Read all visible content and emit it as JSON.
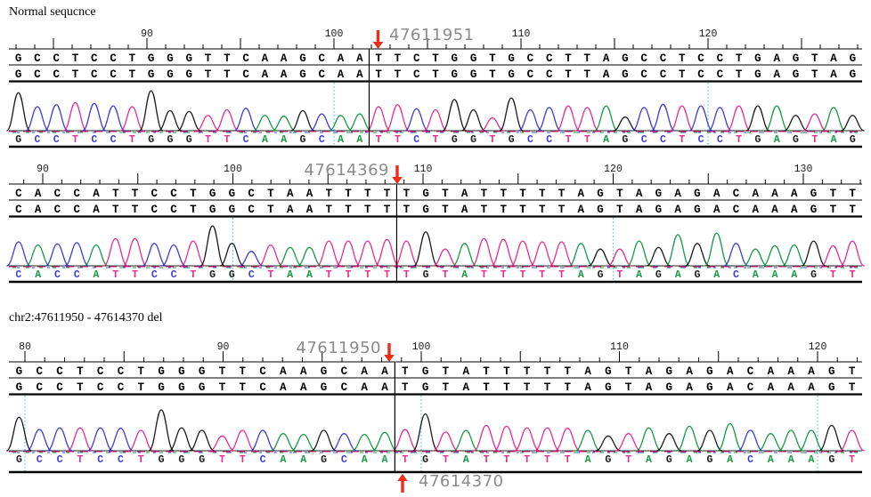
{
  "chart_data": {
    "type": "line",
    "subtype": "sanger-sequencing-chromatogram",
    "base_colors": {
      "A": "#149a43",
      "C": "#3c3cd8",
      "G": "#1a1a1a",
      "T": "#ea2b8d"
    },
    "accent_colors": {
      "guide": "#4cc8d8",
      "arrow": "#ee2c17",
      "marker_label": "#8b8b8b",
      "ink": "#000000"
    },
    "panels": [
      {
        "id": "normal-sequence",
        "title": "Normal sequcnce",
        "sequence": "GCCTCCTGGGTTCAAGCAATTCTGGTGCCTTAGCCTCCTGAGTAG",
        "break_after_base": 19,
        "ruler": {
          "anchor_value": 90,
          "tick_labels": [
            90,
            100,
            110,
            120
          ]
        },
        "marker": {
          "value": "47611951",
          "side": "right"
        },
        "guide_values": [
          100,
          120
        ],
        "peak_heights": [
          0.95,
          0.6,
          0.65,
          0.7,
          0.68,
          0.62,
          0.6,
          1.0,
          0.5,
          0.48,
          0.38,
          0.52,
          0.56,
          0.38,
          0.36,
          0.5,
          0.42,
          0.38,
          0.42,
          0.6,
          0.65,
          0.55,
          0.52,
          0.78,
          0.52,
          0.32,
          0.82,
          0.52,
          0.58,
          0.62,
          0.58,
          0.62,
          0.34,
          0.58,
          0.66,
          0.62,
          0.62,
          0.58,
          0.62,
          0.62,
          0.62,
          0.38,
          0.42,
          0.58,
          0.38
        ]
      },
      {
        "id": "normal-sequence-2",
        "sequence": "CACCATTCCTGGCTAATTTTTGTATTTTTAGTAGAGACAAAGTT",
        "break_after_base": 20,
        "ruler": {
          "anchor_value": 90,
          "tick_labels": [
            90,
            100,
            110,
            120,
            130
          ]
        },
        "marker": {
          "value": "47614369",
          "side": "left"
        },
        "guide_values": [
          100,
          120
        ],
        "peak_heights": [
          0.6,
          0.52,
          0.55,
          0.58,
          0.52,
          0.68,
          0.68,
          0.56,
          0.52,
          0.62,
          1.0,
          0.56,
          0.36,
          0.52,
          0.46,
          0.46,
          0.62,
          0.62,
          0.62,
          0.66,
          0.62,
          0.85,
          0.42,
          0.56,
          0.68,
          0.66,
          0.62,
          0.6,
          0.6,
          0.56,
          0.42,
          0.42,
          0.62,
          0.46,
          0.78,
          0.56,
          0.82,
          0.56,
          0.42,
          0.5,
          0.52,
          0.62,
          0.5,
          0.62
        ]
      },
      {
        "id": "deletion-sequence",
        "title": "chr2:47611950 - 47614370 del",
        "sequence": "GCCTCCTGGGTTCAAGCAATGTATTTTTAGTAGAGACAAAGT",
        "break_after_base": 19,
        "ruler": {
          "anchor_value": 80,
          "tick_labels": [
            80,
            90,
            100,
            110,
            120
          ]
        },
        "marker": {
          "value": "47611950",
          "side": "left"
        },
        "bottom_marker": {
          "value": "47614370"
        },
        "guide_values": [
          80,
          100,
          120
        ],
        "peak_heights": [
          0.82,
          0.52,
          0.56,
          0.56,
          0.56,
          0.55,
          0.5,
          1.0,
          0.56,
          0.5,
          0.36,
          0.5,
          0.5,
          0.42,
          0.4,
          0.5,
          0.42,
          0.4,
          0.45,
          0.52,
          0.9,
          0.46,
          0.5,
          0.62,
          0.6,
          0.56,
          0.56,
          0.55,
          0.5,
          0.36,
          0.42,
          0.56,
          0.42,
          0.6,
          0.5,
          0.66,
          0.5,
          0.42,
          0.5,
          0.5,
          0.62,
          0.5
        ]
      }
    ]
  }
}
